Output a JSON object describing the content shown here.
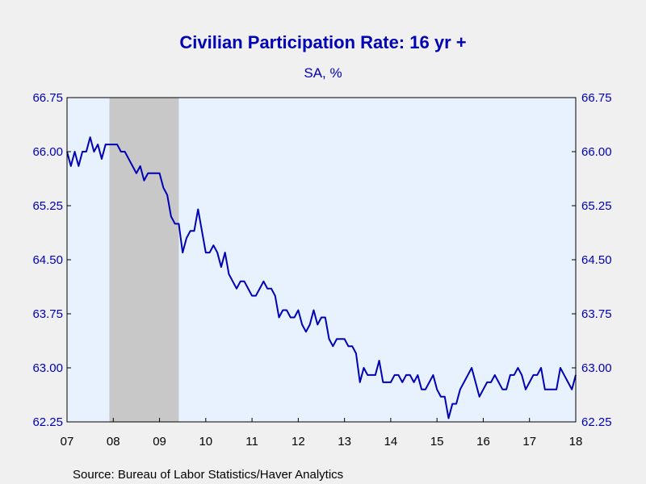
{
  "chart_data": {
    "type": "line",
    "title": "Civilian Participation Rate: 16 yr +",
    "subtitle": "SA, %",
    "source": "Source:  Bureau of Labor Statistics/Haver Analytics",
    "ylim": [
      62.25,
      66.75
    ],
    "yticks": [
      "66.75",
      "66.00",
      "65.25",
      "64.50",
      "63.75",
      "63.00",
      "62.25"
    ],
    "xlim": [
      2007.0,
      2018.0
    ],
    "xticks": [
      {
        "label": "07",
        "x": 2007
      },
      {
        "label": "08",
        "x": 2008
      },
      {
        "label": "09",
        "x": 2009
      },
      {
        "label": "10",
        "x": 2010
      },
      {
        "label": "11",
        "x": 2011
      },
      {
        "label": "12",
        "x": 2012
      },
      {
        "label": "13",
        "x": 2013
      },
      {
        "label": "14",
        "x": 2014
      },
      {
        "label": "15",
        "x": 2015
      },
      {
        "label": "16",
        "x": 2016
      },
      {
        "label": "17",
        "x": 2017
      },
      {
        "label": "18",
        "x": 2018
      }
    ],
    "recession": {
      "start": 2007.917,
      "end": 2009.417
    },
    "grid": false,
    "legend": "none",
    "colors": {
      "line": "#0000b4",
      "plot_bg": "#e8f2ff",
      "recession": "#c8c8c8",
      "axis_text": "#0000b4"
    },
    "series": [
      {
        "start": "2007-01",
        "frequency": "monthly",
        "values": [
          66.0,
          65.8,
          66.0,
          65.8,
          66.0,
          66.0,
          66.2,
          66.0,
          66.1,
          65.9,
          66.1,
          66.1,
          66.1,
          66.1,
          66.0,
          66.0,
          65.9,
          65.8,
          65.7,
          65.8,
          65.6,
          65.7,
          65.7,
          65.7,
          65.7,
          65.5,
          65.4,
          65.1,
          65.0,
          65.0,
          64.6,
          64.8,
          64.9,
          64.9,
          65.2,
          64.9,
          64.6,
          64.6,
          64.7,
          64.6,
          64.4,
          64.6,
          64.3,
          64.2,
          64.1,
          64.2,
          64.2,
          64.1,
          64.0,
          64.0,
          64.1,
          64.2,
          64.1,
          64.1,
          64.0,
          63.7,
          63.8,
          63.8,
          63.7,
          63.7,
          63.8,
          63.6,
          63.5,
          63.6,
          63.8,
          63.6,
          63.7,
          63.7,
          63.4,
          63.3,
          63.4,
          63.4,
          63.4,
          63.3,
          63.3,
          63.2,
          62.8,
          63.0,
          62.9,
          62.9,
          62.9,
          63.1,
          62.8,
          62.8,
          62.8,
          62.9,
          62.9,
          62.8,
          62.9,
          62.9,
          62.8,
          62.9,
          62.7,
          62.7,
          62.8,
          62.9,
          62.7,
          62.6,
          62.6,
          62.3,
          62.5,
          62.5,
          62.7,
          62.8,
          62.9,
          63.0,
          62.8,
          62.6,
          62.7,
          62.8,
          62.8,
          62.9,
          62.8,
          62.7,
          62.7,
          62.9,
          62.9,
          63.0,
          62.9,
          62.7,
          62.8,
          62.9,
          62.9,
          63.0,
          62.7,
          62.7,
          62.7,
          62.7,
          63.0,
          62.9,
          62.8,
          62.7,
          62.9
        ]
      }
    ]
  }
}
